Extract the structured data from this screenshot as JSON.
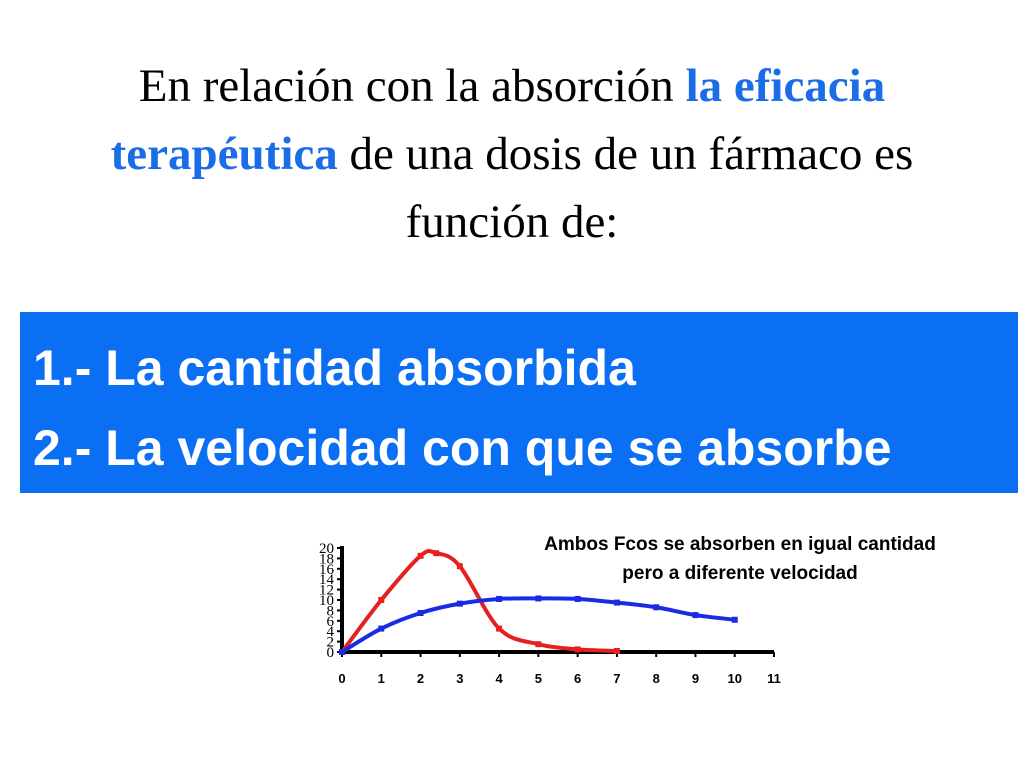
{
  "heading": {
    "part1": "En relación con la absorción ",
    "highlight1": "la eficacia",
    "highlight2": "terapéutica",
    "part2": " de una dosis de un fármaco es",
    "part3": "función de:"
  },
  "highlight_color": "#1a6de6",
  "box": {
    "color": "#0a6ff2",
    "items": [
      {
        "label": "1.- La cantidad absorbida"
      },
      {
        "label": "2.- La velocidad con que se absorbe"
      }
    ]
  },
  "chart_caption": {
    "line1": "Ambos Fcos se absorben en igual cantidad",
    "line2": "pero a diferente velocidad"
  },
  "chart_data": {
    "type": "line",
    "xlim": [
      0,
      11
    ],
    "ylim": [
      0,
      20
    ],
    "x_ticks": [
      "0",
      "1",
      "2",
      "3",
      "4",
      "5",
      "6",
      "7",
      "8",
      "9",
      "10",
      "11"
    ],
    "y_ticks": [
      "0",
      "2",
      "4",
      "6",
      "8",
      "10",
      "12",
      "14",
      "16",
      "18",
      "20"
    ],
    "grid": false,
    "series": [
      {
        "color": "#e62020",
        "x": [
          0,
          1,
          2,
          2.4,
          3,
          4,
          5,
          6,
          7
        ],
        "y": [
          0,
          10,
          18.5,
          19,
          16.5,
          4.5,
          1.5,
          0.5,
          0.2
        ]
      },
      {
        "color": "#1a2be6",
        "x": [
          0,
          1,
          2,
          3,
          4,
          5,
          6,
          7,
          8,
          9,
          10
        ],
        "y": [
          0,
          4.5,
          7.5,
          9.3,
          10.2,
          10.3,
          10.2,
          9.5,
          8.6,
          7.1,
          6.2
        ]
      }
    ]
  }
}
